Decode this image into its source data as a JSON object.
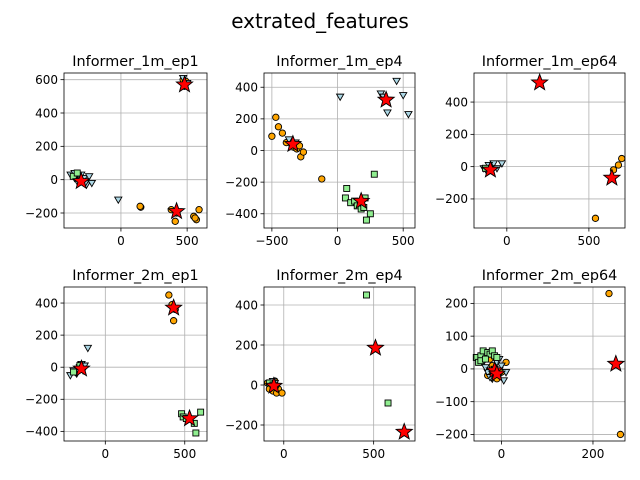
{
  "chart_data": {
    "type": "scatter",
    "title": "extrated_features",
    "grid": true,
    "colors": {
      "circle": "#ffa500",
      "triangle": "#add8e6",
      "square": "#90ee90",
      "star": "#ff0000",
      "edge": "#000000",
      "grid": "#b0b0b0"
    },
    "subplots": [
      {
        "title": "Informer_1m_ep1",
        "xlim": [
          -430,
          650
        ],
        "ylim": [
          -290,
          640
        ],
        "xticks": [
          0,
          500
        ],
        "yticks": [
          -200,
          0,
          200,
          400,
          600
        ],
        "series": [
          {
            "marker": "circle",
            "points": [
              [
                150,
                -165
              ],
              [
                145,
                -160
              ],
              [
                380,
                -180
              ],
              [
                410,
                -250
              ],
              [
                420,
                -200
              ],
              [
                550,
                -220
              ],
              [
                570,
                -240
              ],
              [
                590,
                -180
              ],
              [
                560,
                -230
              ],
              [
                470,
                600
              ],
              [
                480,
                560
              ],
              [
                490,
                590
              ]
            ]
          },
          {
            "marker": "triangle",
            "points": [
              [
                -380,
                30
              ],
              [
                -350,
                40
              ],
              [
                -320,
                20
              ],
              [
                -300,
                0
              ],
              [
                -280,
                10
              ],
              [
                -260,
                -30
              ],
              [
                -240,
                20
              ],
              [
                -220,
                -20
              ],
              [
                -330,
                -10
              ],
              [
                -300,
                30
              ],
              [
                -270,
                -20
              ],
              [
                -350,
                10
              ],
              [
                -20,
                -120
              ],
              [
                470,
                610
              ],
              [
                500,
                580
              ]
            ]
          },
          {
            "marker": "square",
            "points": [
              [
                -360,
                20
              ],
              [
                -330,
                40
              ]
            ]
          },
          {
            "marker": "star",
            "points": [
              [
                -300,
                -10
              ],
              [
                420,
                -190
              ],
              [
                480,
                570
              ]
            ]
          }
        ]
      },
      {
        "title": "Informer_1m_ep4",
        "xlim": [
          -560,
          590
        ],
        "ylim": [
          -490,
          490
        ],
        "xticks": [
          -500,
          0,
          500
        ],
        "yticks": [
          -400,
          -200,
          0,
          200,
          400
        ],
        "series": [
          {
            "marker": "circle",
            "points": [
              [
                -470,
                210
              ],
              [
                -500,
                90
              ],
              [
                -450,
                150
              ],
              [
                -420,
                110
              ],
              [
                -390,
                50
              ],
              [
                -350,
                40
              ],
              [
                -330,
                20
              ],
              [
                -310,
                10
              ],
              [
                -290,
                30
              ],
              [
                -280,
                -40
              ],
              [
                -260,
                -10
              ],
              [
                -120,
                -180
              ]
            ]
          },
          {
            "marker": "triangle",
            "points": [
              [
                -370,
                70
              ],
              [
                -320,
                50
              ],
              [
                20,
                340
              ],
              [
                330,
                360
              ],
              [
                450,
                440
              ],
              [
                500,
                350
              ],
              [
                380,
                240
              ],
              [
                540,
                230
              ],
              [
                350,
                340
              ]
            ]
          },
          {
            "marker": "square",
            "points": [
              [
                70,
                -240
              ],
              [
                60,
                -300
              ],
              [
                100,
                -330
              ],
              [
                130,
                -320
              ],
              [
                150,
                -350
              ],
              [
                180,
                -370
              ],
              [
                200,
                -360
              ],
              [
                210,
                -300
              ],
              [
                220,
                -440
              ],
              [
                250,
                -400
              ],
              [
                280,
                -150
              ]
            ]
          },
          {
            "marker": "star",
            "points": [
              [
                -340,
                40
              ],
              [
                180,
                -320
              ],
              [
                370,
                320
              ]
            ]
          }
        ]
      },
      {
        "title": "Informer_1m_ep64",
        "xlim": [
          -200,
          720
        ],
        "ylim": [
          -380,
          580
        ],
        "xticks": [
          0,
          500
        ],
        "yticks": [
          -200,
          0,
          200,
          400
        ],
        "series": [
          {
            "marker": "circle",
            "points": [
              [
                540,
                -320
              ],
              [
                650,
                -20
              ],
              [
                680,
                10
              ],
              [
                700,
                50
              ]
            ]
          },
          {
            "marker": "triangle",
            "points": [
              [
                -140,
                -10
              ],
              [
                -120,
                -30
              ],
              [
                -100,
                0
              ],
              [
                -80,
                20
              ],
              [
                -60,
                -10
              ],
              [
                -30,
                20
              ],
              [
                -110,
                10
              ]
            ]
          },
          {
            "marker": "square",
            "points": [
              [
                -130,
                -10
              ]
            ]
          },
          {
            "marker": "star",
            "points": [
              [
                -100,
                -20
              ],
              [
                200,
                520
              ],
              [
                640,
                -70
              ]
            ]
          }
        ]
      },
      {
        "title": "Informer_2m_ep1",
        "xlim": [
          -260,
          640
        ],
        "ylim": [
          -460,
          500
        ],
        "xticks": [
          0,
          500
        ],
        "yticks": [
          -400,
          -200,
          0,
          200,
          400
        ],
        "series": [
          {
            "marker": "circle",
            "points": [
              [
                400,
                450
              ],
              [
                420,
                390
              ],
              [
                440,
                360
              ],
              [
                430,
                290
              ]
            ]
          },
          {
            "marker": "triangle",
            "points": [
              [
                -220,
                -50
              ],
              [
                -200,
                -20
              ],
              [
                -180,
                -40
              ],
              [
                -160,
                0
              ],
              [
                -150,
                20
              ],
              [
                -130,
                10
              ],
              [
                -170,
                -10
              ],
              [
                -190,
                -30
              ],
              [
                -140,
                -20
              ],
              [
                -110,
                120
              ]
            ]
          },
          {
            "marker": "square",
            "points": [
              [
                -200,
                -30
              ],
              [
                -160,
                10
              ],
              [
                480,
                -290
              ],
              [
                490,
                -310
              ],
              [
                560,
                -350
              ],
              [
                570,
                -410
              ],
              [
                600,
                -280
              ],
              [
                510,
                -320
              ]
            ]
          },
          {
            "marker": "star",
            "points": [
              [
                -150,
                -10
              ],
              [
                430,
                370
              ],
              [
                530,
                -320
              ]
            ]
          }
        ]
      },
      {
        "title": "Informer_2m_ep4",
        "xlim": [
          -110,
          730
        ],
        "ylim": [
          -280,
          490
        ],
        "xticks": [
          0,
          500
        ],
        "yticks": [
          -200,
          0,
          200,
          400
        ],
        "series": [
          {
            "marker": "circle",
            "points": [
              [
                -90,
                10
              ],
              [
                -70,
                -10
              ],
              [
                -60,
                -30
              ],
              [
                -50,
                20
              ],
              [
                -40,
                -40
              ],
              [
                -30,
                -20
              ],
              [
                -10,
                -40
              ],
              [
                -80,
                -20
              ]
            ]
          },
          {
            "marker": "triangle",
            "points": [
              [
                -70,
                0
              ],
              [
                -50,
                10
              ],
              [
                -40,
                -10
              ],
              [
                -60,
                20
              ]
            ]
          },
          {
            "marker": "square",
            "points": [
              [
                -80,
                10
              ],
              [
                -60,
                0
              ],
              [
                460,
                450
              ],
              [
                580,
                -90
              ]
            ]
          },
          {
            "marker": "star",
            "points": [
              [
                -55,
                -5
              ],
              [
                510,
                185
              ],
              [
                670,
                -235
              ]
            ]
          }
        ]
      },
      {
        "title": "Informer_2m_ep64",
        "xlim": [
          -60,
          270
        ],
        "ylim": [
          -220,
          250
        ],
        "xticks": [
          0,
          200
        ],
        "yticks": [
          -200,
          -100,
          0,
          100,
          200
        ],
        "series": [
          {
            "marker": "circle",
            "points": [
              [
                -30,
                -20
              ],
              [
                -20,
                10
              ],
              [
                -10,
                -30
              ],
              [
                0,
                -10
              ],
              [
                10,
                20
              ],
              [
                -25,
                30
              ],
              [
                235,
                230
              ],
              [
                260,
                -200
              ]
            ]
          },
          {
            "marker": "triangle",
            "points": [
              [
                -40,
                20
              ],
              [
                -30,
                -10
              ],
              [
                -20,
                -30
              ],
              [
                -15,
                0
              ],
              [
                -10,
                20
              ],
              [
                -5,
                -20
              ],
              [
                0,
                10
              ],
              [
                10,
                -10
              ],
              [
                -35,
                5
              ],
              [
                -25,
                -25
              ],
              [
                5,
                -35
              ],
              [
                -5,
                30
              ]
            ]
          },
          {
            "marker": "square",
            "points": [
              [
                -55,
                35
              ],
              [
                -50,
                20
              ],
              [
                -45,
                40
              ],
              [
                -40,
                55
              ],
              [
                -30,
                50
              ],
              [
                -25,
                45
              ],
              [
                -20,
                55
              ],
              [
                -15,
                40
              ],
              [
                -10,
                35
              ],
              [
                -45,
                25
              ],
              [
                -35,
                30
              ]
            ]
          },
          {
            "marker": "star",
            "points": [
              [
                -15,
                -5
              ],
              [
                -10,
                -15
              ],
              [
                250,
                15
              ]
            ]
          }
        ]
      }
    ]
  }
}
